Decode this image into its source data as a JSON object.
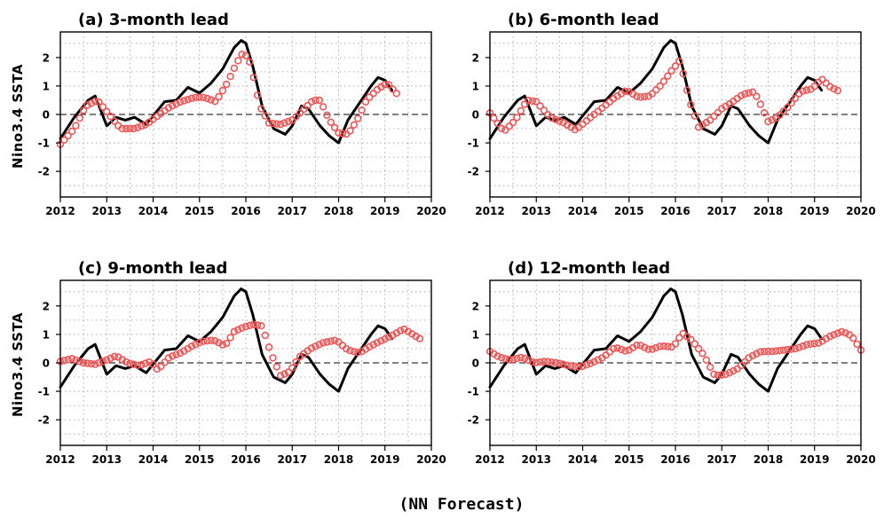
{
  "caption": "(NN Forecast)",
  "colors": {
    "observed": "#000000",
    "forecast": "#ee5555",
    "grid": "#9a9a9a"
  },
  "chart_data": [
    {
      "type": "line",
      "title": "(a) 3-month lead",
      "ylabel": "Nino3.4 SSTA",
      "xlim": [
        2012,
        2020
      ],
      "ylim": [
        -2.9,
        2.9
      ],
      "xticks": [
        2012,
        2013,
        2014,
        2015,
        2016,
        2017,
        2018,
        2019,
        2020
      ],
      "yticks": [
        -2,
        -1,
        0,
        1,
        2
      ],
      "grid": true,
      "series": [
        {
          "style": "solid-line",
          "x": [
            2012.0,
            2012.3,
            2012.6,
            2012.75,
            2013.0,
            2013.2,
            2013.4,
            2013.6,
            2013.85,
            2014.0,
            2014.25,
            2014.5,
            2014.75,
            2015.0,
            2015.25,
            2015.5,
            2015.75,
            2015.9,
            2016.0,
            2016.15,
            2016.35,
            2016.6,
            2016.85,
            2017.0,
            2017.2,
            2017.35,
            2017.6,
            2017.8,
            2018.0,
            2018.2,
            2018.45,
            2018.7,
            2018.85,
            2019.0,
            2019.15
          ],
          "values": [
            -0.85,
            -0.1,
            0.5,
            0.65,
            -0.4,
            -0.1,
            -0.2,
            -0.1,
            -0.35,
            -0.05,
            0.45,
            0.5,
            0.95,
            0.75,
            1.1,
            1.6,
            2.35,
            2.6,
            2.5,
            1.7,
            0.3,
            -0.5,
            -0.7,
            -0.4,
            0.3,
            0.2,
            -0.4,
            -0.75,
            -1.0,
            -0.2,
            0.4,
            1.0,
            1.3,
            1.2,
            0.85
          ]
        },
        {
          "style": "open-circles",
          "x": [
            2012.0,
            2012.3,
            2012.55,
            2012.8,
            2013.0,
            2013.3,
            2013.6,
            2013.85,
            2014.1,
            2014.35,
            2014.6,
            2014.9,
            2015.1,
            2015.35,
            2015.6,
            2015.8,
            2015.95,
            2016.1,
            2016.3,
            2016.5,
            2016.75,
            2017.0,
            2017.2,
            2017.45,
            2017.6,
            2017.8,
            2018.0,
            2018.2,
            2018.4,
            2018.6,
            2018.85,
            2019.05,
            2019.3
          ],
          "values": [
            -1.05,
            -0.5,
            0.3,
            0.5,
            0.1,
            -0.5,
            -0.5,
            -0.35,
            -0.05,
            0.25,
            0.45,
            0.6,
            0.6,
            0.45,
            1.1,
            1.8,
            2.2,
            1.8,
            0.3,
            -0.3,
            -0.35,
            -0.2,
            0.1,
            0.5,
            0.5,
            -0.2,
            -0.65,
            -0.7,
            -0.2,
            0.5,
            0.9,
            1.1,
            0.65
          ]
        }
      ]
    },
    {
      "type": "line",
      "title": "(b) 6-month lead",
      "ylabel": "",
      "xlim": [
        2012,
        2020
      ],
      "ylim": [
        -2.9,
        2.9
      ],
      "xticks": [
        2012,
        2013,
        2014,
        2015,
        2016,
        2017,
        2018,
        2019,
        2020
      ],
      "yticks": [
        -2,
        -1,
        0,
        1,
        2
      ],
      "grid": true,
      "series": [
        {
          "style": "solid-line",
          "x": [
            2012.0,
            2012.3,
            2012.6,
            2012.75,
            2013.0,
            2013.2,
            2013.4,
            2013.6,
            2013.85,
            2014.0,
            2014.25,
            2014.5,
            2014.75,
            2015.0,
            2015.25,
            2015.5,
            2015.75,
            2015.9,
            2016.0,
            2016.15,
            2016.35,
            2016.6,
            2016.85,
            2017.0,
            2017.2,
            2017.35,
            2017.6,
            2017.8,
            2018.0,
            2018.2,
            2018.45,
            2018.7,
            2018.85,
            2019.0,
            2019.15
          ],
          "values": [
            -0.85,
            -0.1,
            0.5,
            0.65,
            -0.4,
            -0.1,
            -0.2,
            -0.1,
            -0.35,
            -0.05,
            0.45,
            0.5,
            0.95,
            0.75,
            1.1,
            1.6,
            2.35,
            2.6,
            2.5,
            1.7,
            0.3,
            -0.5,
            -0.7,
            -0.4,
            0.3,
            0.2,
            -0.4,
            -0.75,
            -1.0,
            -0.2,
            0.4,
            1.0,
            1.3,
            1.2,
            0.85
          ]
        },
        {
          "style": "open-circles",
          "x": [
            2012.0,
            2012.3,
            2012.55,
            2012.8,
            2013.0,
            2013.3,
            2013.6,
            2013.85,
            2014.1,
            2014.4,
            2014.7,
            2014.95,
            2015.2,
            2015.45,
            2015.7,
            2015.9,
            2016.1,
            2016.3,
            2016.5,
            2016.75,
            2017.0,
            2017.2,
            2017.45,
            2017.7,
            2017.85,
            2018.0,
            2018.2,
            2018.45,
            2018.7,
            2018.95,
            2019.15,
            2019.35,
            2019.55
          ],
          "values": [
            0.05,
            -0.6,
            -0.2,
            0.5,
            0.45,
            -0.1,
            -0.3,
            -0.55,
            -0.2,
            0.2,
            0.6,
            0.85,
            0.6,
            0.65,
            1.05,
            1.5,
            1.9,
            0.5,
            -0.45,
            -0.2,
            0.2,
            0.4,
            0.7,
            0.8,
            0.3,
            -0.25,
            -0.1,
            0.3,
            0.8,
            0.9,
            1.25,
            0.95,
            0.8
          ]
        }
      ]
    },
    {
      "type": "line",
      "title": "(c) 9-month lead",
      "ylabel": "Nino3.4 SSTA",
      "xlim": [
        2012,
        2020
      ],
      "ylim": [
        -2.9,
        2.9
      ],
      "xticks": [
        2012,
        2013,
        2014,
        2015,
        2016,
        2017,
        2018,
        2019,
        2020
      ],
      "yticks": [
        -2,
        -1,
        0,
        1,
        2
      ],
      "grid": true,
      "series": [
        {
          "style": "solid-line",
          "x": [
            2012.0,
            2012.3,
            2012.6,
            2012.75,
            2013.0,
            2013.2,
            2013.4,
            2013.6,
            2013.85,
            2014.0,
            2014.25,
            2014.5,
            2014.75,
            2015.0,
            2015.25,
            2015.5,
            2015.75,
            2015.9,
            2016.0,
            2016.15,
            2016.35,
            2016.6,
            2016.85,
            2017.0,
            2017.2,
            2017.35,
            2017.6,
            2017.8,
            2018.0,
            2018.2,
            2018.45,
            2018.7,
            2018.85,
            2019.0,
            2019.15
          ],
          "values": [
            -0.85,
            -0.1,
            0.5,
            0.65,
            -0.4,
            -0.1,
            -0.2,
            -0.1,
            -0.35,
            -0.05,
            0.45,
            0.5,
            0.95,
            0.75,
            1.1,
            1.6,
            2.35,
            2.6,
            2.5,
            1.7,
            0.3,
            -0.5,
            -0.7,
            -0.4,
            0.3,
            0.2,
            -0.4,
            -0.75,
            -1.0,
            -0.2,
            0.4,
            1.0,
            1.3,
            1.2,
            0.85
          ]
        },
        {
          "style": "open-circles",
          "x": [
            2012.0,
            2012.25,
            2012.5,
            2012.75,
            2013.0,
            2013.2,
            2013.45,
            2013.7,
            2013.95,
            2014.1,
            2014.35,
            2014.6,
            2014.85,
            2015.05,
            2015.3,
            2015.55,
            2015.75,
            2015.95,
            2016.15,
            2016.35,
            2016.55,
            2016.75,
            2016.95,
            2017.15,
            2017.4,
            2017.65,
            2017.95,
            2018.2,
            2018.45,
            2018.7,
            2018.95,
            2019.2,
            2019.4,
            2019.6,
            2019.8
          ],
          "values": [
            0.05,
            0.15,
            0.0,
            -0.05,
            0.1,
            0.25,
            0.0,
            -0.1,
            0.05,
            -0.25,
            0.2,
            0.35,
            0.6,
            0.75,
            0.8,
            0.6,
            1.1,
            1.25,
            1.35,
            1.3,
            0.3,
            -0.45,
            -0.3,
            0.2,
            0.5,
            0.7,
            0.8,
            0.45,
            0.35,
            0.6,
            0.8,
            1.0,
            1.2,
            1.0,
            0.8
          ]
        }
      ]
    },
    {
      "type": "line",
      "title": "(d) 12-month lead",
      "ylabel": "",
      "xlim": [
        2012,
        2020
      ],
      "ylim": [
        -2.9,
        2.9
      ],
      "xticks": [
        2012,
        2013,
        2014,
        2015,
        2016,
        2017,
        2018,
        2019,
        2020
      ],
      "yticks": [
        -2,
        -1,
        0,
        1,
        2
      ],
      "grid": true,
      "series": [
        {
          "style": "solid-line",
          "x": [
            2012.0,
            2012.3,
            2012.6,
            2012.75,
            2013.0,
            2013.2,
            2013.4,
            2013.6,
            2013.85,
            2014.0,
            2014.25,
            2014.5,
            2014.75,
            2015.0,
            2015.25,
            2015.5,
            2015.75,
            2015.9,
            2016.0,
            2016.15,
            2016.35,
            2016.6,
            2016.85,
            2017.0,
            2017.2,
            2017.35,
            2017.6,
            2017.8,
            2018.0,
            2018.2,
            2018.45,
            2018.7,
            2018.85,
            2019.0,
            2019.15
          ],
          "values": [
            -0.85,
            -0.1,
            0.5,
            0.65,
            -0.4,
            -0.1,
            -0.2,
            -0.1,
            -0.35,
            -0.05,
            0.45,
            0.5,
            0.95,
            0.75,
            1.1,
            1.6,
            2.35,
            2.6,
            2.5,
            1.7,
            0.3,
            -0.5,
            -0.7,
            -0.4,
            0.3,
            0.2,
            -0.4,
            -0.75,
            -1.0,
            -0.2,
            0.4,
            1.0,
            1.3,
            1.2,
            0.85
          ]
        },
        {
          "style": "open-circles",
          "x": [
            2012.0,
            2012.2,
            2012.45,
            2012.7,
            2012.95,
            2013.2,
            2013.45,
            2013.7,
            2013.95,
            2014.2,
            2014.45,
            2014.7,
            2014.95,
            2015.2,
            2015.45,
            2015.7,
            2015.95,
            2016.15,
            2016.35,
            2016.6,
            2016.85,
            2017.1,
            2017.35,
            2017.6,
            2017.85,
            2018.1,
            2018.35,
            2018.6,
            2018.85,
            2019.1,
            2019.35,
            2019.6,
            2019.8,
            2020.0
          ],
          "values": [
            0.4,
            0.2,
            0.1,
            0.2,
            0.0,
            0.05,
            0.0,
            -0.1,
            -0.15,
            0.0,
            0.2,
            0.55,
            0.4,
            0.65,
            0.45,
            0.6,
            0.55,
            1.05,
            0.8,
            0.3,
            -0.45,
            -0.4,
            -0.2,
            0.2,
            0.4,
            0.4,
            0.45,
            0.5,
            0.65,
            0.7,
            0.95,
            1.1,
            0.95,
            0.45
          ]
        }
      ]
    }
  ]
}
